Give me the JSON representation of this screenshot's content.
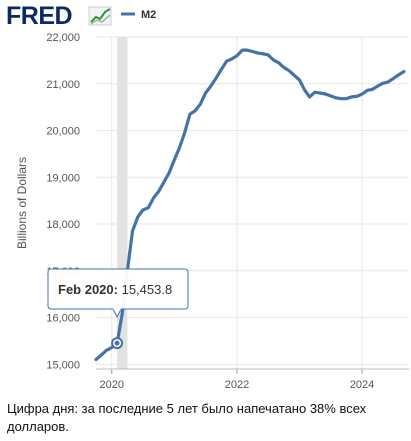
{
  "header": {
    "logo_text": "FRED",
    "logo_icon": "fred-trend-graph-icon",
    "legend_label": "M2"
  },
  "chart_data": {
    "type": "line",
    "title": "",
    "ylabel": "Billions of Dollars",
    "xlabel": "",
    "ylim": [
      14900,
      22000
    ],
    "xlim": [
      "2019-10-01",
      "2024-10-01"
    ],
    "y_ticks": [
      15000,
      16000,
      17000,
      18000,
      19000,
      20000,
      21000,
      22000
    ],
    "y_tick_labels": [
      "15,000",
      "16,000",
      "17,000",
      "18,000",
      "19,000",
      "20,000",
      "21,000",
      "22,000"
    ],
    "x_ticks": [
      "2020-01-01",
      "2022-01-01",
      "2024-01-01"
    ],
    "x_tick_labels": [
      "2020",
      "2022",
      "2024"
    ],
    "grid": true,
    "shaded_period": [
      "2020-02-01",
      "2020-04-01"
    ],
    "series": [
      {
        "name": "M2",
        "color": "#4572a7",
        "x": [
          "2019-10-01",
          "2019-11-01",
          "2019-12-01",
          "2020-01-01",
          "2020-02-01",
          "2020-03-01",
          "2020-04-01",
          "2020-05-01",
          "2020-06-01",
          "2020-07-01",
          "2020-08-01",
          "2020-09-01",
          "2020-10-01",
          "2020-11-01",
          "2020-12-01",
          "2021-01-01",
          "2021-02-01",
          "2021-03-01",
          "2021-04-01",
          "2021-05-01",
          "2021-06-01",
          "2021-07-01",
          "2021-08-01",
          "2021-09-01",
          "2021-10-01",
          "2021-11-01",
          "2021-12-01",
          "2022-01-01",
          "2022-02-01",
          "2022-03-01",
          "2022-04-01",
          "2022-05-01",
          "2022-06-01",
          "2022-07-01",
          "2022-08-01",
          "2022-09-01",
          "2022-10-01",
          "2022-11-01",
          "2022-12-01",
          "2023-01-01",
          "2023-02-01",
          "2023-03-01",
          "2023-04-01",
          "2023-05-01",
          "2023-06-01",
          "2023-07-01",
          "2023-08-01",
          "2023-09-01",
          "2023-10-01",
          "2023-11-01",
          "2023-12-01",
          "2024-01-01",
          "2024-02-01",
          "2024-03-01",
          "2024-04-01",
          "2024-05-01",
          "2024-06-01",
          "2024-07-01",
          "2024-08-01",
          "2024-09-01"
        ],
        "values": [
          15100,
          15200,
          15300,
          15360,
          15453.8,
          16050,
          17000,
          17850,
          18150,
          18300,
          18350,
          18560,
          18700,
          18900,
          19100,
          19380,
          19650,
          19950,
          20350,
          20420,
          20560,
          20800,
          20950,
          21120,
          21300,
          21480,
          21530,
          21600,
          21720,
          21720,
          21690,
          21660,
          21640,
          21620,
          21510,
          21450,
          21350,
          21280,
          21180,
          21080,
          20860,
          20720,
          20820,
          20800,
          20780,
          20740,
          20700,
          20680,
          20680,
          20720,
          20730,
          20780,
          20860,
          20880,
          20950,
          21010,
          21040,
          21110,
          21190,
          21260
        ]
      }
    ],
    "tooltip": {
      "date_label": "Feb 2020:",
      "value_label": "15,453.8",
      "x": "2020-02-01",
      "y": 15453.8
    }
  },
  "caption": "Цифра дня: за последние 5 лет было напечатано 38% всех долларов."
}
